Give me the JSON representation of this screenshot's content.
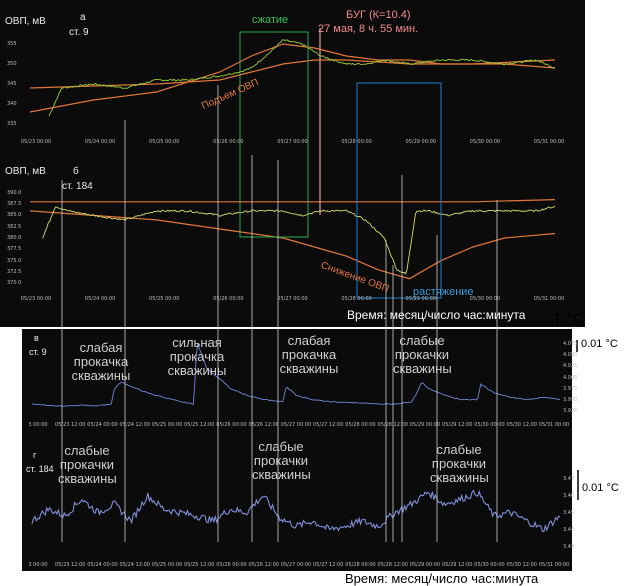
{
  "chart_data": [
    {
      "id": "a",
      "type": "line",
      "panel_letter": "а",
      "ylabel": "ОВП, мВ",
      "station": "ст. 9",
      "ylim": [
        333,
        358
      ],
      "yticks": [
        335,
        340,
        345,
        350,
        355
      ],
      "xticks": [
        "05/23 00:00",
        "05/24 00:00",
        "05/25 00:00",
        "05/26 00:00",
        "05/27 00:00",
        "05/28 00:00",
        "05/29 00:00",
        "05/30 00:00",
        "05/31 00:00"
      ],
      "series": [
        {
          "color": "#9acd32",
          "x": [
            0.3,
            0.5,
            1.0,
            1.5,
            2.0,
            2.5,
            3.0,
            3.3,
            3.5,
            3.8,
            4.0,
            4.3,
            4.6,
            5.0,
            5.3,
            5.6,
            6.0,
            6.5,
            7.0,
            7.5,
            8.0,
            8.3
          ],
          "values": [
            337,
            344,
            345,
            344,
            346,
            346,
            347,
            348,
            349,
            353,
            356,
            355,
            352,
            350,
            350,
            351,
            350,
            351,
            351,
            350,
            351,
            349
          ]
        }
      ],
      "trend_lines": [
        {
          "color": "#e0763b",
          "x": [
            0.0,
            1.0,
            2.0,
            3.0,
            3.5,
            4.0,
            4.5,
            5.0,
            5.5,
            6.0,
            6.5,
            7.0,
            7.5,
            8.3
          ],
          "values": [
            338,
            341,
            343,
            348,
            352,
            355,
            354,
            352,
            351,
            351,
            350,
            350,
            350,
            349
          ]
        },
        {
          "color": "#e0763b",
          "x": [
            0.0,
            1.0,
            2.0,
            3.0,
            3.5,
            4.0,
            4.5,
            5.0,
            5.5,
            6.0,
            6.5,
            7.0,
            8.3
          ],
          "values": [
            344,
            344.5,
            345,
            346,
            348,
            350,
            351,
            351,
            350.5,
            350,
            350,
            350,
            351
          ]
        }
      ],
      "annotations": [
        "Подъем ОВП"
      ]
    },
    {
      "id": "b",
      "type": "line",
      "panel_letter": "б",
      "ylabel": "ОВП, мВ",
      "station": "ст. 184",
      "ylim": [
        368.5,
        391.5
      ],
      "yticks": [
        370.0,
        372.5,
        375.0,
        377.5,
        380.0,
        382.5,
        385.0,
        387.5,
        390.0
      ],
      "xticks": [
        "05/23 00:00",
        "05/24 00:00",
        "05/25 00:00",
        "05/26 00:00",
        "05/27 00:00",
        "05/28 00:00",
        "05/29 00:00",
        "05/30 00:00",
        "05/31 00:00"
      ],
      "series": [
        {
          "color": "#d9d96a",
          "x": [
            0.2,
            0.4,
            0.6,
            1.0,
            1.5,
            2.0,
            2.5,
            3.0,
            3.5,
            4.0,
            4.3,
            4.6,
            5.0,
            5.3,
            5.6,
            5.8,
            5.95,
            6.1,
            6.3,
            6.6,
            7.0,
            7.5,
            8.0,
            8.3
          ],
          "values": [
            380,
            387,
            386,
            385,
            384,
            386,
            386,
            385,
            386,
            386,
            385,
            386,
            386,
            384,
            380,
            373,
            372,
            386,
            386,
            385,
            386,
            386,
            386,
            387
          ]
        }
      ],
      "trend_lines": [
        {
          "color": "#e0763b",
          "x": [
            0.0,
            1.0,
            2.0,
            3.0,
            4.0,
            5.0,
            5.5,
            6.0,
            6.5,
            7.0,
            8.3
          ],
          "values": [
            388,
            388,
            388,
            388,
            388,
            388,
            388,
            388,
            388,
            388,
            388.5
          ]
        },
        {
          "color": "#e0763b",
          "x": [
            0.0,
            1.0,
            2.0,
            3.0,
            4.0,
            4.5,
            5.0,
            5.5,
            6.0,
            6.5,
            7.0,
            7.5,
            8.3
          ],
          "values": [
            386,
            385,
            384,
            382,
            380,
            378,
            376,
            373,
            371,
            375,
            378,
            380,
            381
          ]
        }
      ],
      "annotations": [
        "Снижение ОВП"
      ]
    },
    {
      "id": "v",
      "type": "line",
      "panel_letter": "в",
      "ylabel": "T, °C",
      "station": "ст. 9",
      "ylim": [
        3.915,
        4.085
      ],
      "yticks": [
        3.925,
        3.95,
        3.975,
        4.0,
        4.025,
        4.05,
        4.075
      ],
      "xticks": [
        "3 00:00",
        "05/23 12:00",
        "05/24 00:00",
        "05/24 12:00",
        "05/25 00:00",
        "05/25 12:00",
        "05/26 00:00",
        "05/26 12:00",
        "05/27 00:00",
        "05/27 12:00",
        "05/28 00:00",
        "05/28 12:00",
        "05/29 00:00",
        "05/29 12:00",
        "05/30 00:00",
        "05/30 12:00",
        "05/31 00:00"
      ],
      "scale_bar": "0.01 °C",
      "series": [
        {
          "color": "#6f84d6",
          "x": [
            0.0,
            0.5,
            1.0,
            1.5,
            2.0,
            2.4,
            2.5,
            2.7,
            3.0,
            3.5,
            4.0,
            4.5,
            4.9,
            5.0,
            5.3,
            5.8,
            6.0,
            6.5,
            7.0,
            7.6,
            7.7,
            8.0,
            8.5,
            9.0,
            10.0,
            10.5,
            11.0,
            11.5,
            11.7,
            11.8,
            12.0,
            12.5,
            13.0,
            13.5,
            13.6,
            14.0,
            14.5,
            15.0,
            15.5,
            16.0
          ],
          "values": [
            3.94,
            3.937,
            3.935,
            3.937,
            3.936,
            3.94,
            3.975,
            3.99,
            3.98,
            3.965,
            3.955,
            3.945,
            3.94,
            4.08,
            4.02,
            3.99,
            3.975,
            3.96,
            3.95,
            3.945,
            3.98,
            3.96,
            3.95,
            3.945,
            3.942,
            3.94,
            3.94,
            3.945,
            3.97,
            3.99,
            3.975,
            3.96,
            3.95,
            3.95,
            3.985,
            3.965,
            3.955,
            3.95,
            3.955,
            3.95
          ]
        }
      ]
    },
    {
      "id": "g",
      "type": "line",
      "panel_letter": "г",
      "ylabel": "",
      "station": "ст. 184",
      "ylim": [
        3.428,
        3.475
      ],
      "yticks": [
        3.43,
        3.44,
        3.45,
        3.46,
        3.47
      ],
      "xticks": [
        "3 00:00",
        "05/23 12:00",
        "05/24 00:00",
        "05/24 12:00",
        "05/25 00:00",
        "05/25 12:00",
        "05/26 00:00",
        "05/26 12:00",
        "05/27 00:00",
        "05/27 12:00",
        "05/28 00:00",
        "05/28 12:00",
        "05/29 00:00",
        "05/29 12:00",
        "05/30 00:00",
        "05/30 12:00",
        "05/31 00:00"
      ],
      "scale_bar": "0.01 °C",
      "series": [
        {
          "color": "#7f8fd9",
          "x": [
            0.0,
            0.5,
            1.0,
            1.5,
            2.0,
            2.5,
            3.0,
            3.5,
            4.0,
            4.5,
            5.0,
            5.5,
            6.0,
            6.5,
            7.0,
            7.5,
            8.0,
            8.5,
            9.0,
            9.5,
            10.0,
            10.5,
            11.0,
            11.5,
            12.0,
            12.5,
            13.0,
            13.5,
            14.0,
            14.5,
            15.0,
            15.5,
            16.0
          ],
          "values": [
            3.445,
            3.452,
            3.448,
            3.458,
            3.45,
            3.455,
            3.445,
            3.46,
            3.452,
            3.45,
            3.448,
            3.445,
            3.452,
            3.45,
            3.46,
            3.447,
            3.442,
            3.445,
            3.44,
            3.442,
            3.445,
            3.442,
            3.45,
            3.455,
            3.462,
            3.455,
            3.458,
            3.462,
            3.448,
            3.45,
            3.445,
            3.44,
            3.448
          ]
        }
      ]
    }
  ],
  "panel_a": {
    "ylabel": "ОВП, мВ",
    "letter": "а",
    "station": "ст. 9",
    "compression_label": "сжатие",
    "bug_label": "БУГ (К=10.4)",
    "bug_time": "27 мая, 8 ч. 55 мин.",
    "rise_label": "Подъем ОВП"
  },
  "panel_b": {
    "ylabel": "ОВП, мВ",
    "letter": "б",
    "station": "ст. 184",
    "drop_label": "Снижение ОВП",
    "stretch_label": "растяжение",
    "time_caption": "Время: месяц/число час:минута"
  },
  "panel_v": {
    "letter": "в",
    "station": "ст. 9",
    "temp_label": "T, °C",
    "scale_label": "0.01 °C",
    "note1": "слабая прокачка скважины",
    "note2": "сильная прокачка скважины",
    "note3": "слабая прокачка скважины",
    "note4": "слабые прокачки скважины"
  },
  "panel_g": {
    "letter": "г",
    "station": "ст. 184",
    "scale_label": "0.01 °C",
    "note1": "слабые прокачки скважины",
    "note2": "слабые прокачки скважины",
    "note3": "слабые прокачки скважины",
    "time_caption": "Время: месяц/число час:минута"
  },
  "colors": {
    "orange": "#e0763b",
    "green_box": "#2fa84f",
    "blue_box": "#1e7fd0",
    "bug_line": "#e8a0a0",
    "bug_text": "#f08b8b",
    "stretch_text": "#3a9ad9",
    "compression_text": "#3ac15a"
  }
}
